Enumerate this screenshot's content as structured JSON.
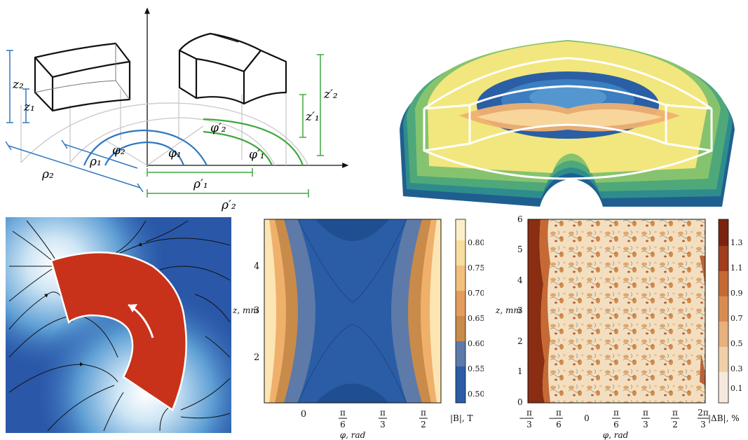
{
  "geometry": {
    "labels": {
      "z2": "z₂",
      "z1": "z₁",
      "z2p": "z′₂",
      "z1p": "z′₁",
      "phi1": "φ₁",
      "phi2": "φ₂",
      "phi1p": "φ′₁",
      "phi2p": "φ′₂",
      "rho1": "ρ₁",
      "rho2": "ρ₂",
      "rho1p": "ρ′₁",
      "rho2p": "ρ′₂"
    },
    "colors": {
      "left_set": "#2e78c0",
      "right_set": "#3fa83f",
      "boxes": "#111111",
      "guides": "#c8c8c8"
    }
  },
  "contour_b": {
    "ylabel": "z, mm",
    "xlabel": "φ, rad",
    "colorbar_label": "|B|, T",
    "yticks": [
      "2",
      "3",
      "4"
    ],
    "xticks": [
      {
        "num": "",
        "den": "",
        "plain": "0"
      },
      {
        "num": "π",
        "den": "6",
        "plain": ""
      },
      {
        "num": "π",
        "den": "3",
        "plain": ""
      },
      {
        "num": "π",
        "den": "2",
        "plain": ""
      }
    ],
    "colorbar_ticks": [
      "0.80",
      "0.75",
      "0.70",
      "0.65",
      "0.60",
      "0.55",
      "0.50"
    ]
  },
  "contour_db": {
    "ylabel": "z, mm",
    "xlabel": "φ, rad",
    "colorbar_label": "|ΔB|, %",
    "yticks": [
      "0",
      "1",
      "2",
      "3",
      "4",
      "5",
      "6"
    ],
    "xticks": [
      {
        "num": "π",
        "den": "3",
        "sign": "−"
      },
      {
        "num": "π",
        "den": "6",
        "sign": "−"
      },
      {
        "num": "",
        "den": "",
        "sign": "",
        "plain": "0"
      },
      {
        "num": "π",
        "den": "6",
        "sign": ""
      },
      {
        "num": "π",
        "den": "3",
        "sign": ""
      },
      {
        "num": "π",
        "den": "2",
        "sign": ""
      },
      {
        "num": "2π",
        "den": "3",
        "sign": ""
      }
    ],
    "colorbar_ticks": [
      "1.3",
      "1.1",
      "0.9",
      "0.7",
      "0.5",
      "0.3",
      "0.1"
    ]
  }
}
